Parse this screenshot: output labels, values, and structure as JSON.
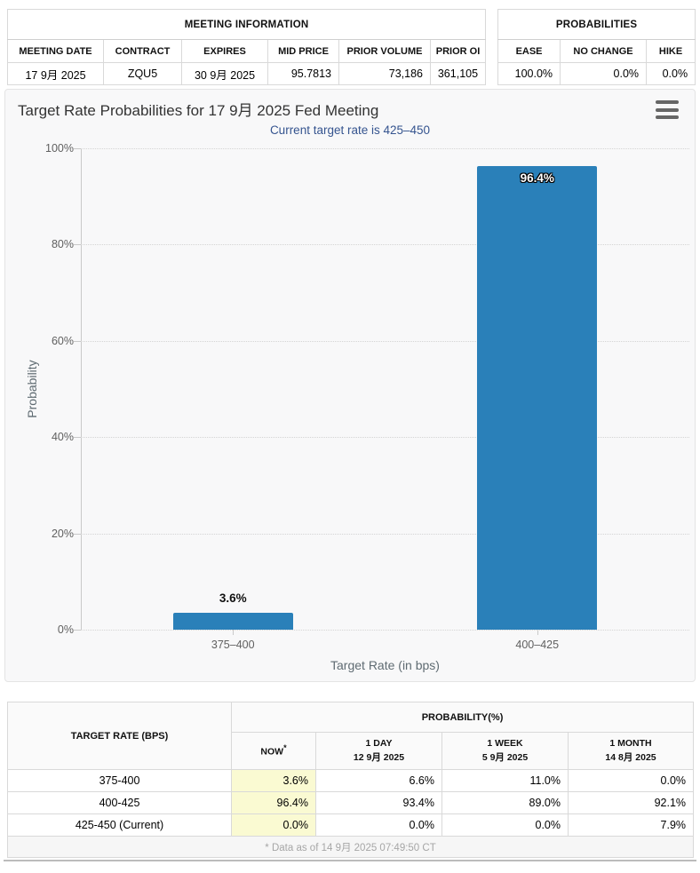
{
  "meeting_info": {
    "title": "MEETING INFORMATION",
    "headers": [
      "MEETING DATE",
      "CONTRACT",
      "EXPIRES",
      "MID PRICE",
      "PRIOR VOLUME",
      "PRIOR OI"
    ],
    "values": [
      "17 9月 2025",
      "ZQU5",
      "30 9月 2025",
      "95.7813",
      "73,186",
      "361,105"
    ]
  },
  "probabilities": {
    "title": "PROBABILITIES",
    "headers": [
      "EASE",
      "NO CHANGE",
      "HIKE"
    ],
    "values": [
      "100.0%",
      "0.0%",
      "0.0%"
    ]
  },
  "chart_data": {
    "type": "bar",
    "title": "Target Rate Probabilities for 17 9月 2025 Fed Meeting",
    "subtitle": "Current target rate is 425–450",
    "xlabel": "Target Rate (in bps)",
    "ylabel": "Probability",
    "ylim": [
      0,
      100
    ],
    "yticks": [
      0,
      20,
      40,
      60,
      80,
      100
    ],
    "ytick_suffix": "%",
    "categories": [
      "375–400",
      "400–425"
    ],
    "values": [
      3.6,
      96.4
    ],
    "labels": [
      "3.6%",
      "96.4%"
    ],
    "label_positions": [
      "above",
      "inside"
    ],
    "bar_color": "#2a80b9",
    "grid": true,
    "legend": false
  },
  "prob_table": {
    "col_target": "TARGET RATE (BPS)",
    "col_probability": "PROBABILITY(%)",
    "subheaders": [
      {
        "l1": "NOW",
        "sup": "*"
      },
      {
        "l1": "1 DAY",
        "l2": "12 9月 2025"
      },
      {
        "l1": "1 WEEK",
        "l2": "5 9月 2025"
      },
      {
        "l1": "1 MONTH",
        "l2": "14 8月 2025"
      }
    ],
    "rows": [
      {
        "target": "375-400",
        "now": "3.6%",
        "day": "6.6%",
        "week": "11.0%",
        "month": "0.0%"
      },
      {
        "target": "400-425",
        "now": "96.4%",
        "day": "93.4%",
        "week": "89.0%",
        "month": "92.1%"
      },
      {
        "target": "425-450 (Current)",
        "now": "0.0%",
        "day": "0.0%",
        "week": "0.0%",
        "month": "7.9%"
      }
    ],
    "footnote": "* Data as of 14 9月 2025 07:49:50 CT"
  },
  "colors": {
    "bar": "#2a80b9",
    "now_highlight": "#fafad2",
    "subtitle": "#35548f"
  }
}
